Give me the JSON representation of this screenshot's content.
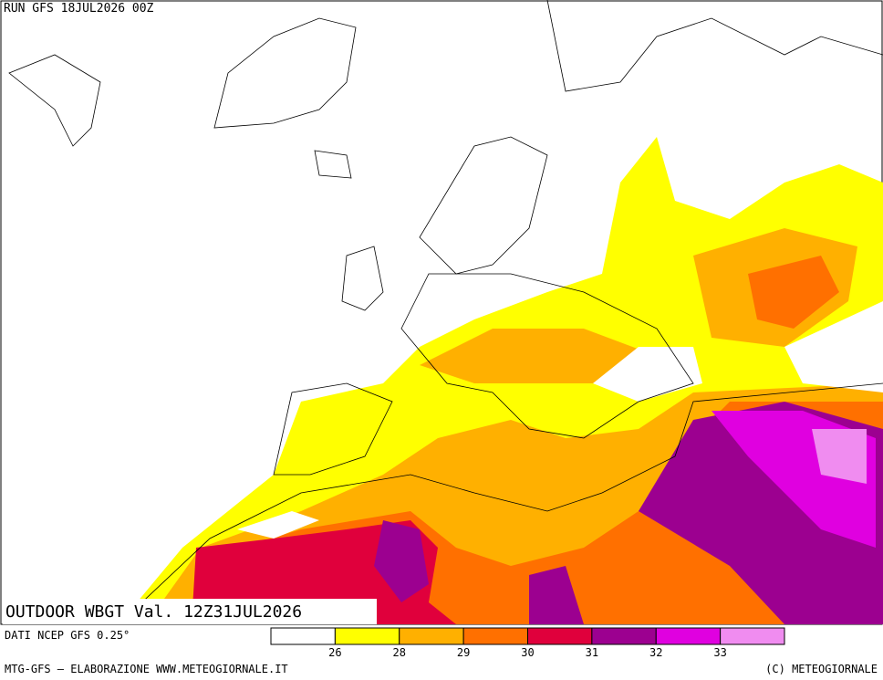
{
  "header": {
    "run": "RUN GFS 18JUL2026 00Z"
  },
  "map": {
    "title": "OUTDOOR WBGT Val. 12Z31JUL2026"
  },
  "legend": {
    "source": "DATI NCEP GFS 0.25°",
    "colors": [
      "#ffffff",
      "#ffff00",
      "#ffb000",
      "#ff7000",
      "#e0003c",
      "#9c0090",
      "#e000e0",
      "#f08cf0"
    ],
    "ticks": [
      26,
      28,
      29,
      30,
      31,
      32,
      33
    ]
  },
  "footer": {
    "left": "MTG-GFS — ELABORAZIONE WWW.METEOGIORNALE.IT",
    "right": "(C) METEOGIORNALE"
  }
}
